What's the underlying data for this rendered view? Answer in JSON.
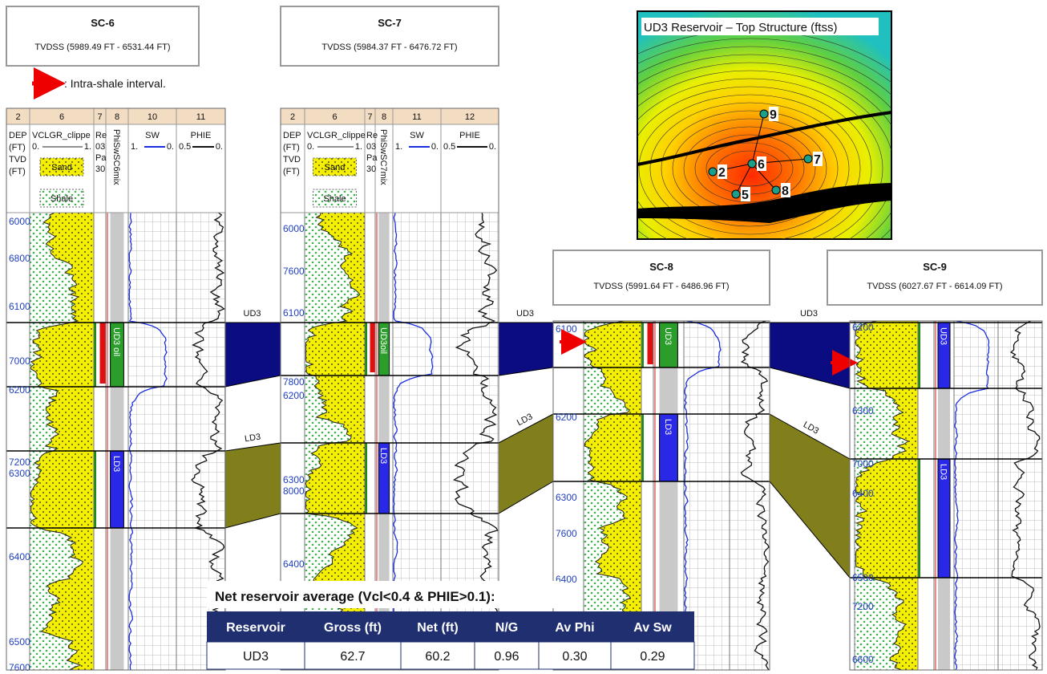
{
  "note": ": Intra-shale interval.",
  "wells": [
    {
      "name": "SC-6",
      "tvdss": "TVDSS (5989.49 FT - 6531.44 FT)",
      "track_numbers": [
        "2",
        "6",
        "7",
        "8",
        "10",
        "11"
      ],
      "depth_header": [
        "DEP",
        "(FT)",
        "TVD",
        "(FT)"
      ],
      "vcl": "VCLGR_clippe",
      "vcl_scale": [
        "0.",
        "1."
      ],
      "sand": "Sand",
      "shale": "Shale",
      "res": [
        "Re",
        "03",
        "Pa",
        "30"
      ],
      "mix": "PhiSwSC6mix",
      "sw": "SW",
      "sw_scale": [
        "1.",
        "0."
      ],
      "phie": "PHIE",
      "phie_scale": [
        "0.5",
        "0."
      ],
      "zone_labels": [
        "UD3 oil",
        "LD3"
      ],
      "depths": [
        "6000",
        "6800",
        "6100",
        "7000",
        "6200",
        "7200",
        "6300",
        "6400",
        "6500",
        "7600"
      ]
    },
    {
      "name": "SC-7",
      "tvdss": "TVDSS (5984.37 FT - 6476.72 FT)",
      "track_numbers": [
        "2",
        "6",
        "7",
        "8",
        "11",
        "12"
      ],
      "depth_header": [
        "DEP",
        "(FT)",
        "TVD",
        "(FT)"
      ],
      "vcl": "VCLGR_clippe",
      "vcl_scale": [
        "0.",
        "1."
      ],
      "sand": "Sand",
      "shale": "Shale",
      "res": [
        "Re",
        "03",
        "Pa",
        "30"
      ],
      "mix": "PhiSwSC7mix",
      "sw": "SW",
      "sw_scale": [
        "1.",
        "0."
      ],
      "phie": "PHIE",
      "phie_scale": [
        "0.5",
        "0."
      ],
      "zone_labels": [
        "UD3oil",
        "LD3"
      ],
      "depths": [
        "6000",
        "7600",
        "6100",
        "7800",
        "6200",
        "6300",
        "8000",
        "6400"
      ]
    },
    {
      "name": "SC-8",
      "tvdss": "TVDSS (5991.64 FT - 6486.96 FT)",
      "zone_labels": [
        "UD3",
        "LD3"
      ],
      "depths": [
        "6100",
        "6200",
        "6300",
        "7600",
        "6400"
      ]
    },
    {
      "name": "SC-9",
      "tvdss": "TVDSS (6027.67 FT - 6614.09 FT)",
      "zone_labels": [
        "UD3",
        "LD3"
      ],
      "depths": [
        "6200",
        "6300",
        "7000",
        "6400",
        "6500",
        "7200",
        "6600"
      ]
    }
  ],
  "correlations": [
    {
      "upper": "UD3",
      "lower": "LD3"
    },
    {
      "upper": "UD3",
      "lower": "LD3"
    },
    {
      "upper": "UD3",
      "lower": "LD3"
    }
  ],
  "map": {
    "title": "UD3 Reservoir – Top Structure (ftss)",
    "wells": [
      "9",
      "2",
      "6",
      "7",
      "5",
      "8"
    ]
  },
  "table": {
    "title": "Net reservoir average (Vcl<0.4 & PHIE>0.1):",
    "columns": [
      "Reservoir",
      "Gross (ft)",
      "Net (ft)",
      "N/G",
      "Av Phi",
      "Av Sw"
    ],
    "rows": [
      [
        "UD3",
        "62.7",
        "60.2",
        "0.96",
        "0.30",
        "0.29"
      ]
    ]
  }
}
